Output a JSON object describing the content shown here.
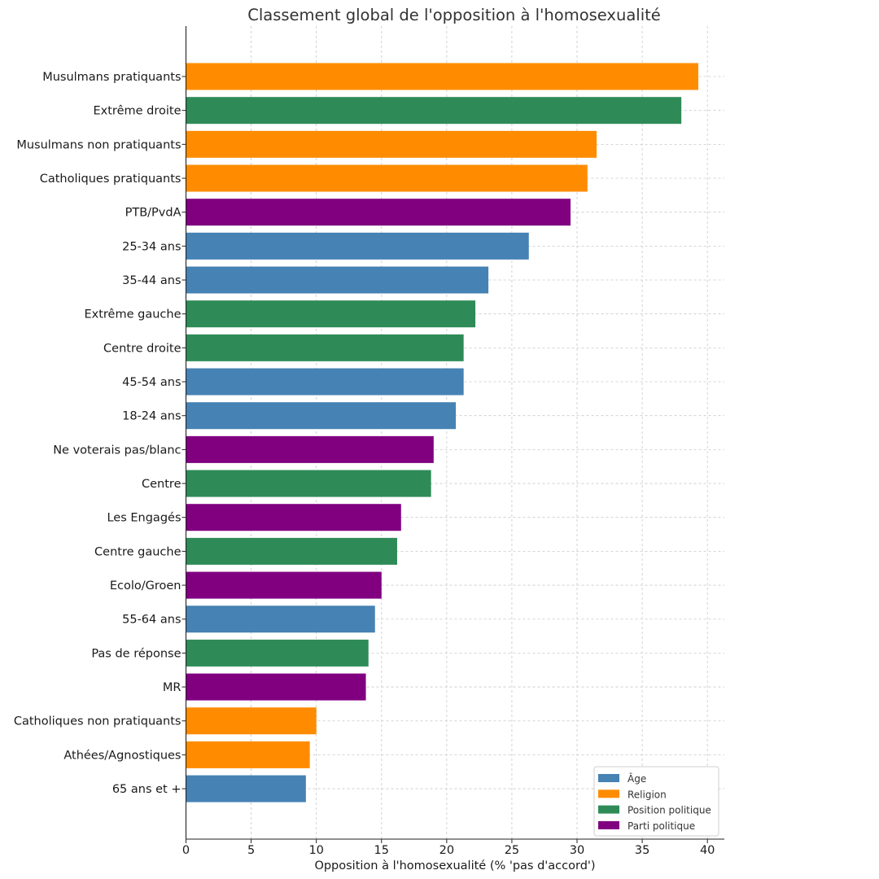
{
  "colors": {
    "Âge": "#4682b4",
    "Religion": "#ff8c00",
    "Position politique": "#2e8b57",
    "Parti politique": "#800080"
  },
  "chart_data": {
    "type": "bar",
    "orientation": "horizontal",
    "title": "Classement global de l'opposition à l'homosexualité",
    "xlabel": "Opposition à l'homosexualité (% 'pas d'accord')",
    "ylabel": "",
    "xlim": [
      0,
      41.3
    ],
    "xticks": [
      0,
      5,
      10,
      15,
      20,
      25,
      30,
      35,
      40
    ],
    "grid": true,
    "legend": {
      "placement": "bottom-right",
      "entries": [
        "Âge",
        "Religion",
        "Position politique",
        "Parti politique"
      ]
    },
    "bars": [
      {
        "label": "Musulmans pratiquants",
        "value": 39.3,
        "group": "Religion"
      },
      {
        "label": "Extrême droite",
        "value": 38.0,
        "group": "Position politique"
      },
      {
        "label": "Musulmans non pratiquants",
        "value": 31.5,
        "group": "Religion"
      },
      {
        "label": "Catholiques pratiquants",
        "value": 30.8,
        "group": "Religion"
      },
      {
        "label": "PTB/PvdA",
        "value": 29.5,
        "group": "Parti politique"
      },
      {
        "label": "25-34 ans",
        "value": 26.3,
        "group": "Âge"
      },
      {
        "label": "35-44 ans",
        "value": 23.2,
        "group": "Âge"
      },
      {
        "label": "Extrême gauche",
        "value": 22.2,
        "group": "Position politique"
      },
      {
        "label": "Centre droite",
        "value": 21.3,
        "group": "Position politique"
      },
      {
        "label": "45-54 ans",
        "value": 21.3,
        "group": "Âge"
      },
      {
        "label": "18-24 ans",
        "value": 20.7,
        "group": "Âge"
      },
      {
        "label": "Ne voterais pas/blanc",
        "value": 19.0,
        "group": "Parti politique"
      },
      {
        "label": "Centre",
        "value": 18.8,
        "group": "Position politique"
      },
      {
        "label": "Les Engagés",
        "value": 16.5,
        "group": "Parti politique"
      },
      {
        "label": "Centre gauche",
        "value": 16.2,
        "group": "Position politique"
      },
      {
        "label": "Ecolo/Groen",
        "value": 15.0,
        "group": "Parti politique"
      },
      {
        "label": "55-64 ans",
        "value": 14.5,
        "group": "Âge"
      },
      {
        "label": "Pas de réponse",
        "value": 14.0,
        "group": "Position politique"
      },
      {
        "label": "MR",
        "value": 13.8,
        "group": "Parti politique"
      },
      {
        "label": "Catholiques non pratiquants",
        "value": 10.0,
        "group": "Religion"
      },
      {
        "label": "Athées/Agnostiques",
        "value": 9.5,
        "group": "Religion"
      },
      {
        "label": "65 ans et +",
        "value": 9.2,
        "group": "Âge"
      }
    ]
  }
}
